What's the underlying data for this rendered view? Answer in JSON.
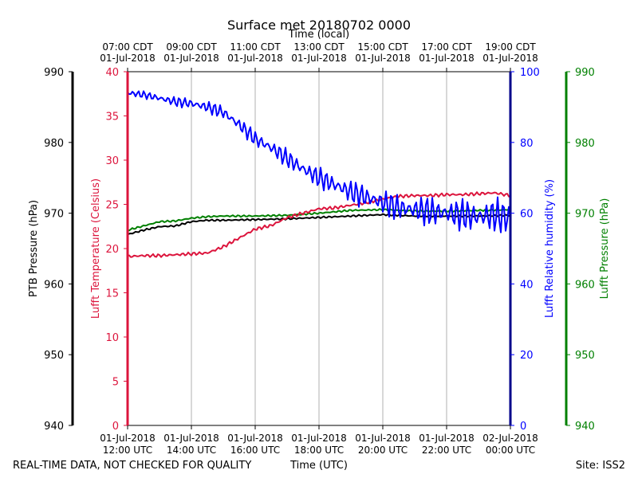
{
  "chart_data": {
    "type": "line",
    "title": "Surface met 20180702 0000",
    "top_axis_label": "Time (local)",
    "bottom_axis_label": "Time (UTC)",
    "footer_left": "REAL-TIME DATA, NOT CHECKED FOR QUALITY",
    "footer_right": "Site: ISS2",
    "x_range_hours_utc": [
      12,
      24
    ],
    "x_ticks_utc": [
      {
        "h": 12,
        "line1": "01-Jul-2018",
        "line2": "12:00 UTC"
      },
      {
        "h": 14,
        "line1": "01-Jul-2018",
        "line2": "14:00 UTC"
      },
      {
        "h": 16,
        "line1": "01-Jul-2018",
        "line2": "16:00 UTC"
      },
      {
        "h": 18,
        "line1": "01-Jul-2018",
        "line2": "18:00 UTC"
      },
      {
        "h": 20,
        "line1": "01-Jul-2018",
        "line2": "20:00 UTC"
      },
      {
        "h": 22,
        "line1": "01-Jul-2018",
        "line2": "22:00 UTC"
      },
      {
        "h": 24,
        "line1": "02-Jul-2018",
        "line2": "00:00 UTC"
      }
    ],
    "x_ticks_local": [
      {
        "h": 12,
        "line1": "07:00 CDT",
        "line2": "01-Jul-2018"
      },
      {
        "h": 14,
        "line1": "09:00 CDT",
        "line2": "01-Jul-2018"
      },
      {
        "h": 16,
        "line1": "11:00 CDT",
        "line2": "01-Jul-2018"
      },
      {
        "h": 18,
        "line1": "13:00 CDT",
        "line2": "01-Jul-2018"
      },
      {
        "h": 20,
        "line1": "15:00 CDT",
        "line2": "01-Jul-2018"
      },
      {
        "h": 22,
        "line1": "17:00 CDT",
        "line2": "01-Jul-2018"
      },
      {
        "h": 24,
        "line1": "19:00 CDT",
        "line2": "01-Jul-2018"
      }
    ],
    "axes": {
      "ptb_pressure": {
        "label": "PTB Pressure (hPa)",
        "ylim": [
          940,
          990
        ],
        "ticks": [
          940,
          950,
          960,
          970,
          980,
          990
        ],
        "color": "#000000"
      },
      "temperature": {
        "label": "Lufft Temperature (Celsius)",
        "ylim": [
          0,
          40
        ],
        "ticks": [
          0,
          5,
          10,
          15,
          20,
          25,
          30,
          35,
          40
        ],
        "color": "#dc143c"
      },
      "humidity": {
        "label": "Lufft Relative humidity (%)",
        "ylim": [
          0,
          100
        ],
        "ticks": [
          0,
          20,
          40,
          60,
          80,
          100
        ],
        "color": "#0000ff"
      },
      "lufft_pressure": {
        "label": "Lufft Pressure (hPa)",
        "ylim": [
          940,
          990
        ],
        "ticks": [
          940,
          950,
          960,
          970,
          980,
          990
        ],
        "color": "#008000"
      }
    },
    "series": [
      {
        "name": "PTB Pressure",
        "axis": "ptb_pressure",
        "color": "#000000",
        "x": [
          12.0,
          12.5,
          13.0,
          13.5,
          14.0,
          14.5,
          15.0,
          16.0,
          17.0,
          18.0,
          19.0,
          20.0,
          21.0,
          22.0,
          23.0,
          24.0
        ],
        "values": [
          967.0,
          967.6,
          968.1,
          968.2,
          968.8,
          969.0,
          969.0,
          969.1,
          969.2,
          969.4,
          969.6,
          969.8,
          969.6,
          969.6,
          969.6,
          969.7
        ]
      },
      {
        "name": "Lufft Pressure",
        "axis": "lufft_pressure",
        "color": "#008000",
        "x": [
          12.0,
          12.5,
          13.0,
          13.5,
          14.0,
          14.5,
          15.0,
          16.0,
          17.0,
          18.0,
          19.0,
          20.0,
          21.0,
          22.0,
          23.0,
          24.0
        ],
        "values": [
          967.6,
          968.2,
          968.8,
          968.9,
          969.3,
          969.5,
          969.6,
          969.6,
          969.7,
          970.0,
          970.4,
          970.5,
          970.3,
          970.3,
          970.4,
          970.5
        ]
      },
      {
        "name": "Lufft Temperature",
        "axis": "temperature",
        "color": "#dc143c",
        "x": [
          12.0,
          12.5,
          13.0,
          13.5,
          14.0,
          14.5,
          15.0,
          15.5,
          16.0,
          16.5,
          17.0,
          17.5,
          18.0,
          18.5,
          19.0,
          19.5,
          20.0,
          20.5,
          21.0,
          21.5,
          22.0,
          22.5,
          23.0,
          23.5,
          24.0
        ],
        "values": [
          19.1,
          19.2,
          19.2,
          19.3,
          19.4,
          19.5,
          20.2,
          21.2,
          22.2,
          22.6,
          23.5,
          24.0,
          24.5,
          24.6,
          24.9,
          25.2,
          25.6,
          25.9,
          26.0,
          26.0,
          26.1,
          26.1,
          26.2,
          26.3,
          26.0
        ]
      },
      {
        "name": "Lufft Relative humidity",
        "axis": "humidity",
        "color": "#0000ff",
        "x": [
          12.0,
          12.5,
          13.0,
          13.5,
          14.0,
          14.5,
          15.0,
          15.5,
          16.0,
          16.5,
          17.0,
          17.5,
          18.0,
          18.5,
          19.0,
          19.5,
          20.0,
          20.5,
          21.0,
          21.5,
          22.0,
          22.5,
          23.0,
          23.5,
          24.0
        ],
        "values": [
          94.0,
          93.5,
          92.5,
          91.5,
          91.0,
          90.0,
          88.5,
          85.0,
          81.0,
          78.5,
          75.5,
          72.5,
          70.0,
          68.0,
          66.0,
          64.5,
          63.0,
          61.5,
          61.0,
          60.5,
          60.0,
          59.5,
          59.0,
          59.5,
          58.5
        ]
      }
    ]
  }
}
